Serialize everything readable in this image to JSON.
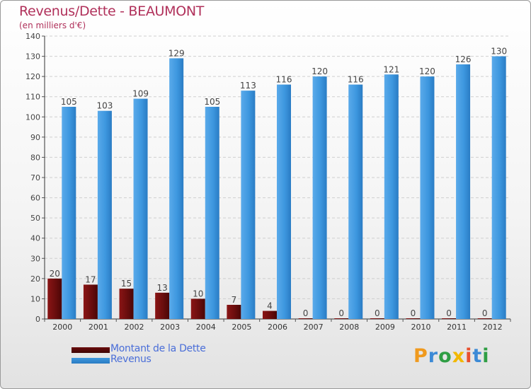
{
  "title": "Revenus/Dette - BEAUMONT",
  "subtitle": "(en milliers d'€)",
  "logo": "Proxiti",
  "colors": {
    "debt": "#6a0d0d",
    "revenue": "#3d97df",
    "title": "#b0305a",
    "logo_p": "#f09a1e",
    "logo_r": "#3c8ad6",
    "logo_o": "#2f9e44",
    "logo_x": "#f2b800",
    "logo_i": "#e8502e",
    "logo_t": "#3c8ad6",
    "logo_i2": "#2f9e44"
  },
  "chart_data": {
    "type": "bar",
    "title": "Revenus/Dette - BEAUMONT",
    "subtitle": "(en milliers d'€)",
    "categories": [
      "2000",
      "2001",
      "2002",
      "2003",
      "2004",
      "2005",
      "2006",
      "2007",
      "2008",
      "2009",
      "2010",
      "2011",
      "2012"
    ],
    "series": [
      {
        "name": "Montant de la Dette",
        "color": "#6a0d0d",
        "values": [
          20,
          17,
          15,
          13,
          10,
          7,
          4,
          0,
          0,
          0,
          0,
          0,
          0
        ]
      },
      {
        "name": "Revenus",
        "color": "#3d97df",
        "values": [
          105,
          103,
          109,
          129,
          105,
          113,
          116,
          120,
          116,
          121,
          120,
          126,
          130
        ]
      }
    ],
    "ylim": [
      0,
      140
    ],
    "yticks": [
      0,
      10,
      20,
      30,
      40,
      50,
      60,
      70,
      80,
      90,
      100,
      110,
      120,
      130,
      140
    ],
    "grid": true,
    "legend": "bottom-left"
  }
}
